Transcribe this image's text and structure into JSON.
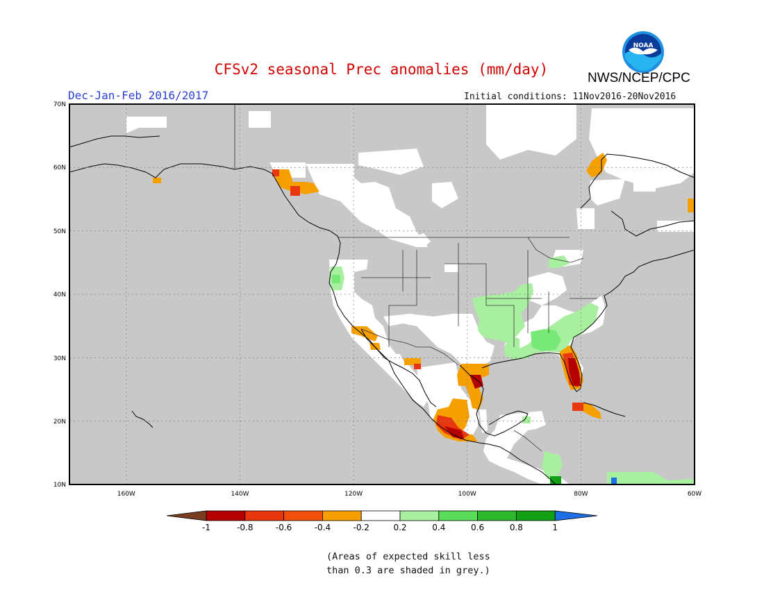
{
  "header": {
    "title": "CFSv2 seasonal Prec anomalies (mm/day)",
    "season": "Dec-Jan-Feb 2016/2017",
    "initial_conditions": "Initial conditions: 11Nov2016-20Nov2016",
    "agency": "NWS/NCEP/CPC",
    "logo_text": "NOAA"
  },
  "map": {
    "lat_labels": [
      "70N",
      "60N",
      "50N",
      "40N",
      "30N",
      "20N",
      "10N"
    ],
    "lon_labels": [
      "160W",
      "140W",
      "120W",
      "100W",
      "80W",
      "60W"
    ],
    "lat_range": [
      10,
      70
    ],
    "lon_range": [
      -170,
      -60
    ],
    "colors": {
      "masked_grey": "#c8c8c8",
      "neutral_white": "#ffffff",
      "dry_-1": "#7a3c1e",
      "dry_-0.8": "#b40000",
      "dry_-0.6": "#e8370f",
      "dry_-0.4": "#f0500a",
      "dry_-0.2": "#f5a000",
      "wet_0.2": "#a8f0a0",
      "wet_0.4": "#78e878",
      "wet_0.6": "#3cc83c",
      "wet_0.8": "#14a014",
      "wet_1": "#1e6ee6"
    }
  },
  "colorbar": {
    "labels": [
      "-1",
      "-0.8",
      "-0.6",
      "-0.4",
      "-0.2",
      "0.2",
      "0.4",
      "0.6",
      "0.8",
      "1"
    ],
    "segments": [
      "#b40000",
      "#e8370f",
      "#f0500a",
      "#f5a000",
      "#ffffff",
      "#a8f0a0",
      "#5ade5a",
      "#2eb82e",
      "#14a014"
    ],
    "ends": [
      "#7a3c1e",
      "#1e6ee6"
    ]
  },
  "note": {
    "line1": "(Areas of expected skill less",
    "line2": "than 0.3 are shaded in grey.)"
  }
}
